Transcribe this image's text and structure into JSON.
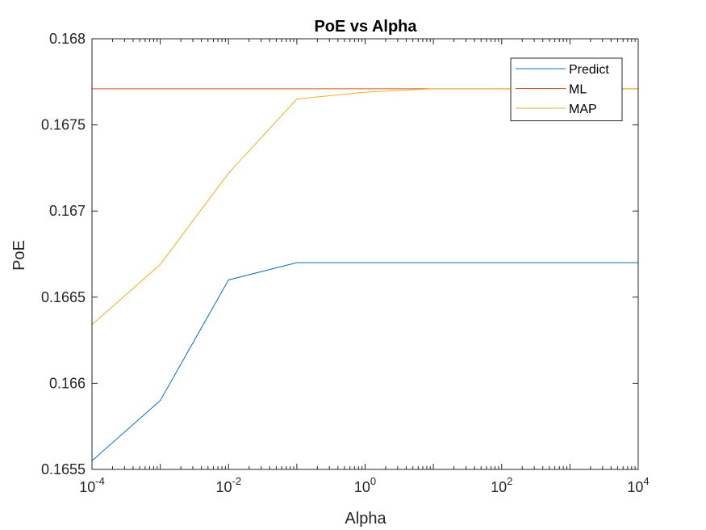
{
  "chart_data": {
    "type": "line",
    "title": "PoE vs Alpha",
    "xlabel": "Alpha",
    "ylabel": "PoE",
    "xscale": "log",
    "xlim": [
      0.0001,
      10000
    ],
    "ylim": [
      0.1655,
      0.168
    ],
    "x_ticks": [
      {
        "base": "10",
        "exp": "-4"
      },
      {
        "base": "10",
        "exp": "-2"
      },
      {
        "base": "10",
        "exp": "0"
      },
      {
        "base": "10",
        "exp": "2"
      },
      {
        "base": "10",
        "exp": "4"
      }
    ],
    "x_tick_values": [
      0.0001,
      0.01,
      1,
      100,
      10000
    ],
    "y_ticks": [
      "0.1655",
      "0.166",
      "0.1665",
      "0.167",
      "0.1675",
      "0.168"
    ],
    "y_tick_values": [
      0.1655,
      0.166,
      0.1665,
      0.167,
      0.1675,
      0.168
    ],
    "grid": false,
    "legend_position": "top-right",
    "x": [
      0.0001,
      0.001,
      0.01,
      0.1,
      1,
      10,
      100,
      1000,
      10000
    ],
    "series": [
      {
        "name": "Predict",
        "color": "#0072BD",
        "values": [
          0.16555,
          0.1659,
          0.1666,
          0.1667,
          0.1667,
          0.1667,
          0.1667,
          0.1667,
          0.1667
        ]
      },
      {
        "name": "ML",
        "color": "#D95319",
        "values": [
          0.16771,
          0.16771,
          0.16771,
          0.16771,
          0.16771,
          0.16771,
          0.16771,
          0.16771,
          0.16771
        ]
      },
      {
        "name": "MAP",
        "color": "#EDB120",
        "values": [
          0.16634,
          0.16669,
          0.16722,
          0.16765,
          0.16769,
          0.16771,
          0.16771,
          0.16771,
          0.16771
        ]
      }
    ]
  }
}
